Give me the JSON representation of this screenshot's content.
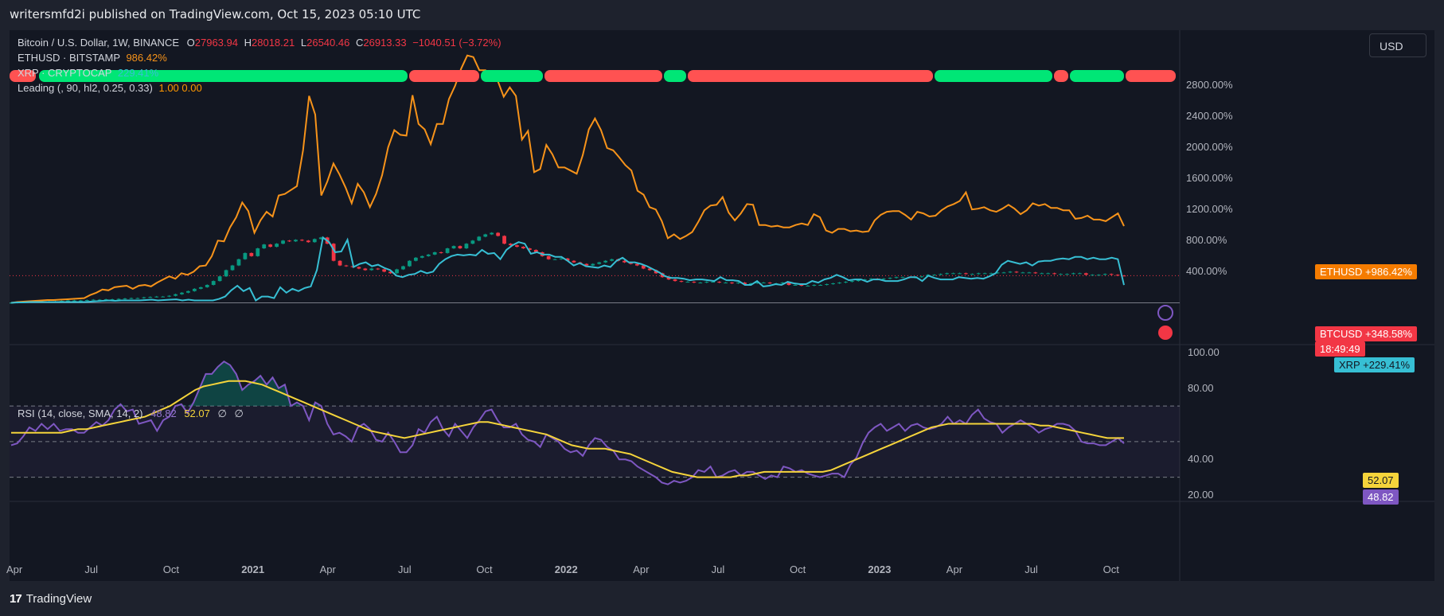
{
  "header": {
    "publisher": "writersmfd2i published on TradingView.com, Oct 15, 2023 05:10 UTC"
  },
  "footer": {
    "brand": "TradingView",
    "logo_mark": "17"
  },
  "currency_button": "USD",
  "legend": {
    "btc_name": "Bitcoin / U.S. Dollar, 1W, BINANCE",
    "btc_open_label": "O",
    "btc_open": "27963.94",
    "btc_high_label": "H",
    "btc_high": "28018.21",
    "btc_low_label": "L",
    "btc_low": "26540.46",
    "btc_close_label": "C",
    "btc_close": "26913.33",
    "btc_change": "−1040.51 (−3.72%)",
    "eth_name": "ETHUSD · BITSTAMP",
    "eth_value": "986.42%",
    "xrp_name": "XRP · CRYPTOCAP",
    "xrp_value": "229.41%",
    "leading_name": "Leading (, 90, hl2, 0.25, 0.33)",
    "leading_values": "1.00 0.00",
    "rsi_name": "RSI (14, close, SMA, 14, 2)",
    "rsi_value": "48.82",
    "rsi_sma_value": "52.07",
    "null1": "∅",
    "null2": "∅"
  },
  "price_tags": {
    "eth": "ETHUSD  +986.42%",
    "btc": "BTCUSD  +348.58%",
    "countdown": "18:49:49",
    "xrp": "XRP  +229.41%",
    "rsi_sma": "52.07",
    "rsi": "48.82"
  },
  "colors": {
    "up": "#089981",
    "down": "#f23645",
    "eth": "#f7931a",
    "xrp": "#37bfd4",
    "rsi": "#7e57c2",
    "rsi_sma": "#f5d43b",
    "lead_green": "#00e676",
    "lead_red": "#ff5252"
  },
  "chart_data": [
    {
      "type": "line",
      "title": "Bitcoin / U.S. Dollar, 1W, BINANCE",
      "yscale": "percent",
      "ylim": [
        -200,
        3300
      ],
      "y_ticks": [
        "2800.00%",
        "2400.00%",
        "2000.00%",
        "1600.00%",
        "1200.00%",
        "800.00%",
        "400.00%"
      ],
      "x_ticks": [
        "Apr",
        "Jul",
        "Oct",
        "2021",
        "Apr",
        "Jul",
        "Oct",
        "2022",
        "Apr",
        "Jul",
        "Oct",
        "2023",
        "Apr",
        "Jul",
        "Oct"
      ],
      "series": [
        {
          "name": "ETHUSD",
          "values": [
            0,
            10,
            15,
            20,
            25,
            30,
            35,
            35,
            40,
            45,
            50,
            55,
            60,
            100,
            130,
            170,
            160,
            200,
            210,
            220,
            180,
            220,
            230,
            210,
            260,
            300,
            340,
            310,
            380,
            360,
            400,
            470,
            480,
            600,
            800,
            790,
            970,
            1100,
            1290,
            1180,
            900,
            1060,
            1170,
            1110,
            1380,
            1400,
            1450,
            1500,
            1960,
            2660,
            2420,
            1380,
            1560,
            1790,
            1650,
            1480,
            1280,
            1530,
            1420,
            1230,
            1400,
            1640,
            2000,
            2220,
            2160,
            2150,
            2670,
            2300,
            2230,
            2040,
            2300,
            2300,
            2620,
            2790,
            3010,
            3180,
            3160,
            2990,
            2990,
            2870,
            2860,
            2650,
            2770,
            2660,
            2100,
            2210,
            1680,
            1720,
            2030,
            1910,
            1740,
            1740,
            1700,
            1660,
            1900,
            2230,
            2370,
            2220,
            1990,
            1960,
            1870,
            1770,
            1700,
            1440,
            1390,
            1230,
            1200,
            1050,
            830,
            880,
            820,
            860,
            910,
            1040,
            1190,
            1250,
            1260,
            1360,
            1160,
            1060,
            1150,
            1270,
            1260,
            1000,
            1000,
            980,
            990,
            970,
            970,
            1000,
            1020,
            1000,
            1140,
            1100,
            930,
            900,
            950,
            950,
            920,
            930,
            910,
            920,
            1060,
            1130,
            1170,
            1180,
            1180,
            1130,
            1070,
            1170,
            1150,
            1110,
            1120,
            1190,
            1240,
            1270,
            1310,
            1420,
            1200,
            1210,
            1230,
            1190,
            1170,
            1210,
            1260,
            1210,
            1140,
            1190,
            1280,
            1250,
            1270,
            1220,
            1220,
            1190,
            1190,
            1080,
            1090,
            1120,
            1070,
            1070,
            1050,
            1100,
            1150,
            986
          ]
        },
        {
          "name": "XRP",
          "values": [
            0,
            5,
            5,
            10,
            10,
            10,
            10,
            10,
            10,
            10,
            10,
            10,
            10,
            15,
            20,
            25,
            30,
            25,
            30,
            30,
            30,
            30,
            35,
            40,
            30,
            35,
            40,
            45,
            30,
            40,
            30,
            30,
            30,
            30,
            50,
            80,
            160,
            220,
            150,
            190,
            30,
            80,
            80,
            60,
            200,
            130,
            180,
            150,
            190,
            210,
            420,
            840,
            780,
            650,
            660,
            810,
            460,
            500,
            520,
            470,
            490,
            450,
            420,
            350,
            330,
            360,
            370,
            410,
            380,
            400,
            500,
            560,
            600,
            620,
            610,
            620,
            610,
            680,
            630,
            640,
            560,
            680,
            740,
            780,
            760,
            630,
            650,
            620,
            620,
            590,
            590,
            540,
            480,
            510,
            470,
            460,
            450,
            480,
            460,
            540,
            580,
            520,
            520,
            500,
            470,
            430,
            390,
            340,
            320,
            320,
            310,
            290,
            300,
            300,
            290,
            280,
            330,
            290,
            290,
            280,
            230,
            230,
            280,
            210,
            220,
            240,
            230,
            270,
            250,
            240,
            240,
            280,
            260,
            300,
            320,
            360,
            330,
            290,
            300,
            300,
            270,
            300,
            300,
            280,
            280,
            280,
            300,
            330,
            330,
            280,
            350,
            320,
            300,
            300,
            300,
            330,
            320,
            310,
            320,
            310,
            340,
            380,
            490,
            540,
            520,
            500,
            520,
            480,
            530,
            540,
            540,
            560,
            570,
            560,
            590,
            590,
            560,
            580,
            560,
            560,
            580,
            560,
            229
          ]
        }
      ]
    },
    {
      "type": "line",
      "title": "RSI (14, close, SMA, 14, 2)",
      "ylim": [
        20,
        100
      ],
      "y_ticks": [
        "100.00",
        "80.00",
        "40.00",
        "20.00"
      ],
      "bands": [
        30,
        50,
        70
      ],
      "series": [
        {
          "name": "RSI",
          "values": [
            48,
            49,
            53,
            58,
            56,
            60,
            57,
            60,
            56,
            57,
            57,
            55,
            55,
            58,
            61,
            59,
            62,
            68,
            71,
            67,
            68,
            60,
            61,
            62,
            56,
            62,
            64,
            70,
            71,
            66,
            72,
            80,
            88,
            88,
            92,
            95,
            93,
            88,
            79,
            82,
            84,
            87,
            82,
            86,
            80,
            82,
            70,
            72,
            70,
            62,
            72,
            70,
            60,
            54,
            55,
            53,
            50,
            58,
            60,
            57,
            51,
            50,
            55,
            50,
            44,
            44,
            48,
            57,
            55,
            61,
            64,
            57,
            53,
            60,
            56,
            52,
            58,
            62,
            67,
            68,
            62,
            58,
            58,
            60,
            54,
            51,
            50,
            47,
            54,
            52,
            50,
            46,
            44,
            45,
            42,
            48,
            52,
            51,
            47,
            45,
            40,
            40,
            39,
            36,
            34,
            32,
            30,
            27,
            26,
            28,
            27,
            28,
            30,
            34,
            33,
            36,
            30,
            31,
            33,
            34,
            31,
            33,
            33,
            31,
            29,
            31,
            30,
            36,
            35,
            33,
            34,
            32,
            31,
            30,
            31,
            32,
            32,
            30,
            37,
            41,
            49,
            55,
            58,
            60,
            56,
            58,
            60,
            56,
            59,
            60,
            58,
            57,
            58,
            60,
            64,
            60,
            62,
            60,
            65,
            68,
            63,
            61,
            60,
            55,
            58,
            60,
            62,
            60,
            58,
            55,
            57,
            58,
            60,
            60,
            59,
            56,
            50,
            49,
            49,
            48,
            48,
            50,
            52,
            49
          ]
        },
        {
          "name": "SMA",
          "values": [
            55,
            55,
            55,
            55,
            55,
            55,
            55,
            56,
            57,
            57,
            58,
            59,
            60,
            61,
            62,
            63,
            64,
            66,
            68,
            70,
            73,
            76,
            79,
            81,
            82,
            83,
            84,
            84,
            84,
            83,
            82,
            80,
            78,
            76,
            74,
            72,
            70,
            68,
            66,
            64,
            62,
            60,
            58,
            56,
            55,
            54,
            53,
            52,
            53,
            54,
            55,
            56,
            57,
            58,
            59,
            60,
            61,
            61,
            60,
            59,
            58,
            57,
            56,
            55,
            54,
            52,
            50,
            48,
            47,
            46,
            46,
            46,
            45,
            44,
            43,
            41,
            39,
            37,
            35,
            33,
            32,
            31,
            30,
            30,
            30,
            30,
            30,
            31,
            31,
            32,
            33,
            33,
            33,
            33,
            33,
            33,
            33,
            33,
            34,
            36,
            38,
            40,
            42,
            44,
            46,
            48,
            50,
            52,
            54,
            56,
            58,
            59,
            60,
            60,
            60,
            60,
            60,
            60,
            60,
            60,
            60,
            60,
            60,
            59,
            59,
            58,
            57,
            56,
            55,
            54,
            53,
            52,
            52,
            52
          ]
        }
      ]
    }
  ]
}
